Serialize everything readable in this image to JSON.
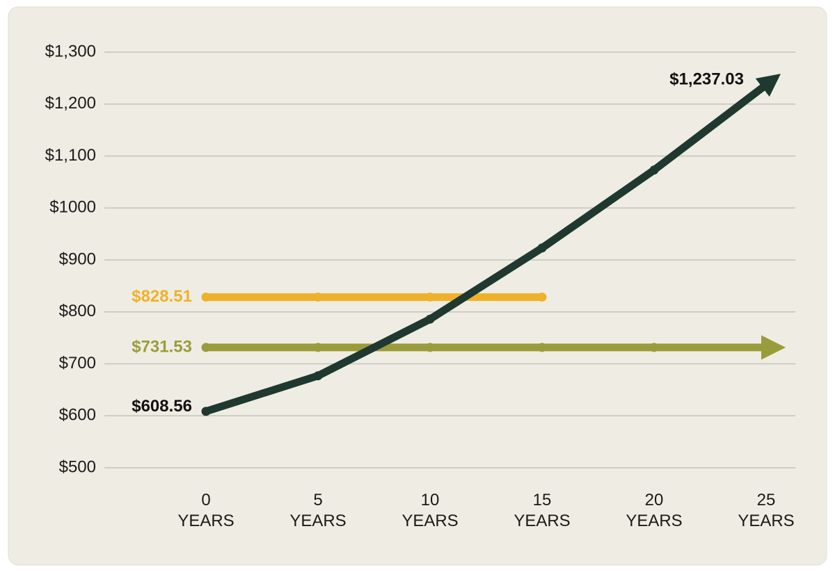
{
  "chart_data": {
    "type": "line",
    "x": [
      0,
      5,
      10,
      15,
      20,
      25
    ],
    "xticks": [
      {
        "value": 0,
        "label": "0\nYEARS"
      },
      {
        "value": 5,
        "label": "5\nYEARS"
      },
      {
        "value": 10,
        "label": "10\nYEARS"
      },
      {
        "value": 15,
        "label": "15\nYEARS"
      },
      {
        "value": 20,
        "label": "20\nYEARS"
      },
      {
        "value": 25,
        "label": "25\nYEARS"
      }
    ],
    "xlim": [
      0,
      25
    ],
    "ylim": [
      500,
      1300
    ],
    "yticks": [
      {
        "value": 500,
        "label": "$500"
      },
      {
        "value": 600,
        "label": "$600"
      },
      {
        "value": 700,
        "label": "$700"
      },
      {
        "value": 800,
        "label": "$800"
      },
      {
        "value": 900,
        "label": "$900"
      },
      {
        "value": 1000,
        "label": "$1000"
      },
      {
        "value": 1100,
        "label": "$1,100"
      },
      {
        "value": 1200,
        "label": "$1,200"
      },
      {
        "value": 1300,
        "label": "$1,300"
      }
    ],
    "grid": true,
    "series": [
      {
        "color": "#f0b12a",
        "values": [
          828.51,
          828.51,
          828.51,
          828.51,
          null,
          null
        ],
        "value_labels": [
          "$828.51",
          null,
          null,
          null,
          null,
          null
        ],
        "arrow": false
      },
      {
        "color": "#9a9c3c",
        "values": [
          731.53,
          731.53,
          731.53,
          731.53,
          731.53,
          731.53
        ],
        "value_labels": [
          "$731.53",
          null,
          null,
          null,
          null,
          null
        ],
        "arrow": true
      },
      {
        "color": "#1f3830",
        "values": [
          608.56,
          677,
          786,
          923,
          1073,
          1237.03
        ],
        "value_labels": [
          "$608.56",
          null,
          null,
          null,
          null,
          "$1,237.03"
        ],
        "arrow": true
      }
    ]
  }
}
